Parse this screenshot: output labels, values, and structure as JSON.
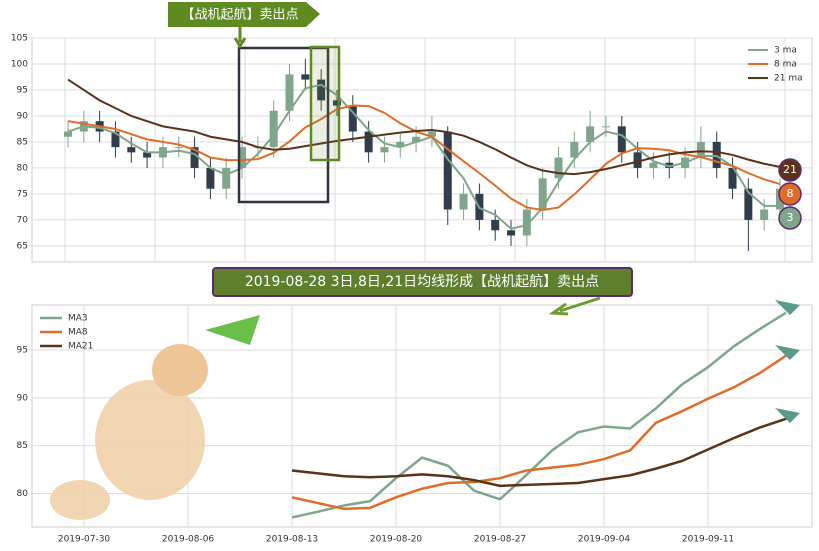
{
  "chart_data": [
    {
      "type": "candlestick",
      "annotation": "【战机起航】卖出点",
      "up_color": "#7fa58a",
      "down_color": "#2f3d4c",
      "ylim": [
        61.9,
        105
      ],
      "yticks": [
        65,
        70,
        75,
        80,
        85,
        90,
        95,
        100,
        105
      ],
      "grid": true,
      "legend": "upper right",
      "open": [
        86,
        87,
        89,
        87,
        84,
        83,
        82,
        84,
        84,
        80,
        76,
        80,
        84,
        84,
        91,
        98,
        97,
        93,
        92,
        87,
        83,
        84,
        85,
        86,
        87,
        72,
        75,
        70,
        68,
        67,
        72,
        78,
        82,
        85,
        88,
        88,
        83,
        80,
        81,
        80,
        82,
        85,
        80,
        76,
        70,
        72
      ],
      "high": [
        89,
        91,
        91,
        89,
        86,
        85,
        86,
        86,
        86,
        82,
        82,
        86,
        86,
        93,
        100,
        101,
        99,
        95,
        94,
        89,
        86,
        87,
        88,
        90,
        88,
        77,
        77,
        72,
        70,
        74,
        80,
        84,
        87,
        91,
        90,
        90,
        85,
        83,
        83,
        84,
        88,
        87,
        82,
        78,
        74,
        78
      ],
      "low": [
        84,
        85,
        85,
        82,
        81,
        80,
        80,
        82,
        78,
        74,
        74,
        78,
        82,
        82,
        89,
        95,
        91,
        90,
        85,
        81,
        81,
        82,
        83,
        84,
        69,
        70,
        68,
        66,
        65,
        65,
        70,
        76,
        80,
        83,
        86,
        81,
        78,
        78,
        78,
        78,
        80,
        78,
        74,
        64,
        68,
        70
      ],
      "close": [
        87,
        89,
        87,
        84,
        83,
        82,
        84,
        84,
        80,
        76,
        80,
        84,
        84,
        91,
        98,
        97,
        93,
        92,
        87,
        83,
        84,
        85,
        86,
        87,
        72,
        75,
        70,
        68,
        67,
        72,
        78,
        82,
        85,
        88,
        88,
        83,
        80,
        81,
        80,
        82,
        85,
        80,
        76,
        70,
        72,
        76
      ],
      "series": [
        {
          "name": "3 ma",
          "color": "#7fa58a",
          "end_label": "3",
          "values": [
            87,
            88,
            87.7,
            86.7,
            84.7,
            83,
            83,
            83.3,
            82.7,
            80,
            78.7,
            80,
            82.7,
            86.3,
            91,
            95.3,
            96,
            94,
            90.7,
            87.3,
            84.7,
            84,
            85,
            86,
            81.7,
            78,
            72.3,
            71,
            68.3,
            69,
            72.3,
            77.3,
            81.7,
            85,
            87,
            86.3,
            83.7,
            81.3,
            80.3,
            81,
            82.3,
            82.3,
            80.3,
            75.3,
            72.7,
            72.7
          ]
        },
        {
          "name": "8 ma",
          "color": "#e06c27",
          "end_label": "8",
          "values": [
            89,
            88.5,
            88,
            87.5,
            86.5,
            85.5,
            85,
            84.5,
            83.5,
            82,
            81.5,
            81.5,
            81.7,
            82.9,
            85.1,
            87.8,
            89.4,
            91.3,
            92,
            91.9,
            90.6,
            88.6,
            87,
            86,
            83.6,
            81.3,
            79,
            76.6,
            74.1,
            72.4,
            71.9,
            72.4,
            74.9,
            77.8,
            80.8,
            82.8,
            83.8,
            83.7,
            83.4,
            82.6,
            82.1,
            81.2,
            80.4,
            79,
            77.8,
            76.9
          ]
        },
        {
          "name": "21 ma",
          "color": "#5a3219",
          "end_label": "21",
          "values": [
            97,
            95,
            93,
            91.5,
            90,
            89,
            88,
            87.5,
            87,
            86,
            85.5,
            85,
            84,
            83.5,
            83.7,
            84.2,
            84.7,
            85.2,
            85.6,
            86,
            86.4,
            86.8,
            87.1,
            87.3,
            86.9,
            86.2,
            85,
            83.6,
            82,
            80.5,
            79.5,
            79,
            78.8,
            79.2,
            79.8,
            80.5,
            81.2,
            82,
            82.6,
            83,
            83.2,
            83.1,
            82.5,
            81.6,
            80.8,
            80.2
          ]
        }
      ]
    },
    {
      "type": "line",
      "annotation": "2019-08-28 3日,8日,21日均线形成【战机起航】卖出点",
      "x": [
        0,
        1,
        2,
        3,
        4,
        5,
        6,
        7,
        8,
        9,
        10,
        11,
        12,
        13,
        14,
        15,
        16,
        17,
        18,
        19
      ],
      "xlim": [
        -10,
        20
      ],
      "xticks": [
        {
          "value": -8,
          "label": "2019-07-30"
        },
        {
          "value": -4,
          "label": "2019-08-06"
        },
        {
          "value": 0,
          "label": "2019-08-13"
        },
        {
          "value": 4,
          "label": "2019-08-20"
        },
        {
          "value": 8,
          "label": "2019-08-27"
        },
        {
          "value": 12,
          "label": "2019-09-04"
        },
        {
          "value": 16,
          "label": "2019-09-11"
        }
      ],
      "ylim": [
        76.5,
        99.7
      ],
      "yticks": [
        80,
        85,
        90,
        95
      ],
      "grid": true,
      "legend": "upper left",
      "series": [
        {
          "name": "MA3",
          "color": "#7fa58a",
          "values": [
            77.5,
            78.1,
            78.75,
            79.2,
            81.6,
            83.75,
            82.9,
            80.3,
            79.4,
            81.9,
            84.5,
            86.4,
            87,
            86.8,
            88.9,
            91.4,
            93.2,
            95.4,
            97.2,
            98.9
          ]
        },
        {
          "name": "MA8",
          "color": "#e06c27",
          "values": [
            79.6,
            79,
            78.4,
            78.5,
            79.6,
            80.5,
            81.1,
            81.2,
            81.6,
            82.4,
            82.7,
            83,
            83.6,
            84.5,
            87.4,
            88.6,
            89.9,
            91.1,
            92.6,
            94.4
          ]
        },
        {
          "name": "MA21",
          "color": "#5a3219",
          "values": [
            82.4,
            82.1,
            81.8,
            81.7,
            81.8,
            82,
            81.8,
            81.4,
            80.8,
            80.9,
            81,
            81.1,
            81.5,
            81.9,
            82.6,
            83.4,
            84.6,
            85.8,
            86.9,
            87.8
          ]
        }
      ]
    }
  ]
}
